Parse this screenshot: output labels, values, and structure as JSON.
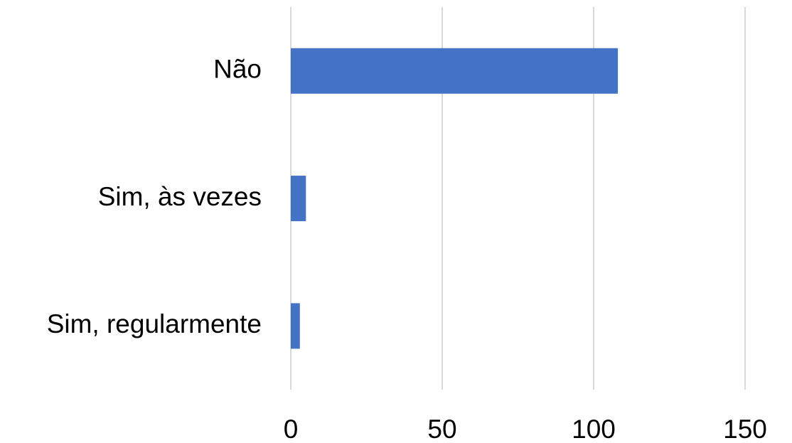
{
  "chart_data": {
    "type": "barh",
    "categories": [
      "Não",
      "Sim, às vezes",
      "Sim, regularmente"
    ],
    "values": [
      108,
      5,
      3
    ],
    "color": "#4472c4",
    "xlim": [
      0,
      150
    ],
    "xticks": [
      0,
      50,
      100,
      150
    ],
    "grid": true
  }
}
